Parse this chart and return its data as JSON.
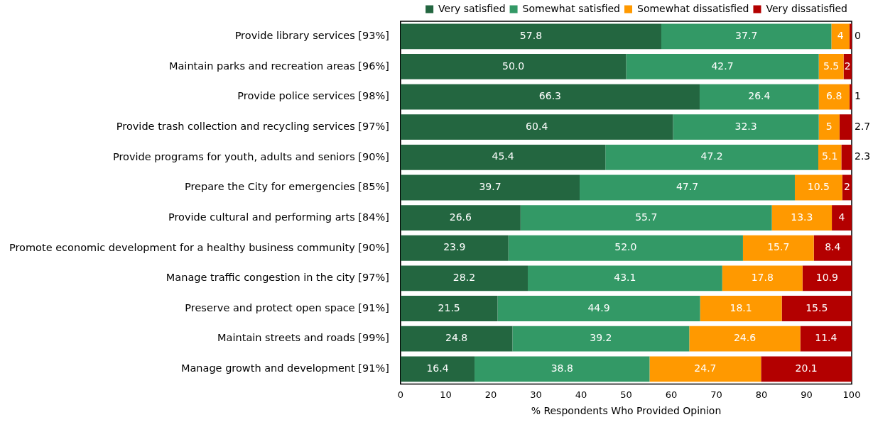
{
  "chart_data": {
    "type": "bar",
    "orientation": "horizontal",
    "stacked": true,
    "xlabel": "% Respondents Who Provided Opinion",
    "categories": [
      "Provide library services [93%]",
      "Maintain parks and recreation areas [96%]",
      "Provide police services [98%]",
      "Provide trash collection and recycling services [97%]",
      "Provide programs for youth, adults and seniors [90%]",
      "Prepare the City for emergencies [85%]",
      "Provide cultural and performing arts [84%]",
      "Promote economic development for a healthy business community [90%]",
      "Manage traffic congestion in the city [97%]",
      "Preserve and protect open space [91%]",
      "Maintain streets and roads [99%]",
      "Manage growth and development [91%]"
    ],
    "series": [
      {
        "name": "Very satisfied",
        "color": "#236640",
        "values": [
          57.8,
          50.0,
          66.3,
          60.4,
          45.4,
          39.7,
          26.6,
          23.9,
          28.2,
          21.5,
          24.8,
          16.4
        ],
        "value_labels": [
          "57.8",
          "50.0",
          "66.3",
          "60.4",
          "45.4",
          "39.7",
          "26.6",
          "23.9",
          "28.2",
          "21.5",
          "24.8",
          "16.4"
        ]
      },
      {
        "name": "Somewhat satisfied",
        "color": "#339966",
        "values": [
          37.7,
          42.7,
          26.4,
          32.3,
          47.2,
          47.7,
          55.7,
          52.0,
          43.1,
          44.9,
          39.2,
          38.8
        ],
        "value_labels": [
          "37.7",
          "42.7",
          "26.4",
          "32.3",
          "47.2",
          "47.7",
          "55.7",
          "52.0",
          "43.1",
          "44.9",
          "39.2",
          "38.8"
        ]
      },
      {
        "name": "Somewhat dissatisfied",
        "color": "#ff9900",
        "values": [
          4.0,
          5.5,
          6.8,
          4.6,
          5.1,
          10.5,
          13.3,
          15.7,
          17.8,
          18.1,
          24.6,
          24.7
        ],
        "value_labels": [
          "4",
          "5.5",
          "6.8",
          "5",
          "5.1",
          "10.5",
          "13.3",
          "15.7",
          "17.8",
          "18.1",
          "24.6",
          "24.7"
        ]
      },
      {
        "name": "Very dissatisfied",
        "color": "#b30000",
        "values": [
          0.5,
          1.8,
          0.5,
          2.7,
          2.3,
          2.1,
          4.4,
          8.4,
          10.9,
          15.5,
          11.4,
          20.1
        ],
        "value_labels": [
          "0",
          "2",
          "1",
          "2.7",
          "2.3",
          "2",
          "4",
          "8.4",
          "10.9",
          "15.5",
          "11.4",
          "20.1"
        ]
      }
    ],
    "xlim": [
      0,
      100
    ],
    "xticks": [
      0,
      10,
      20,
      30,
      40,
      50,
      60,
      70,
      80,
      90,
      100
    ],
    "grid": false,
    "legend": "top right"
  }
}
